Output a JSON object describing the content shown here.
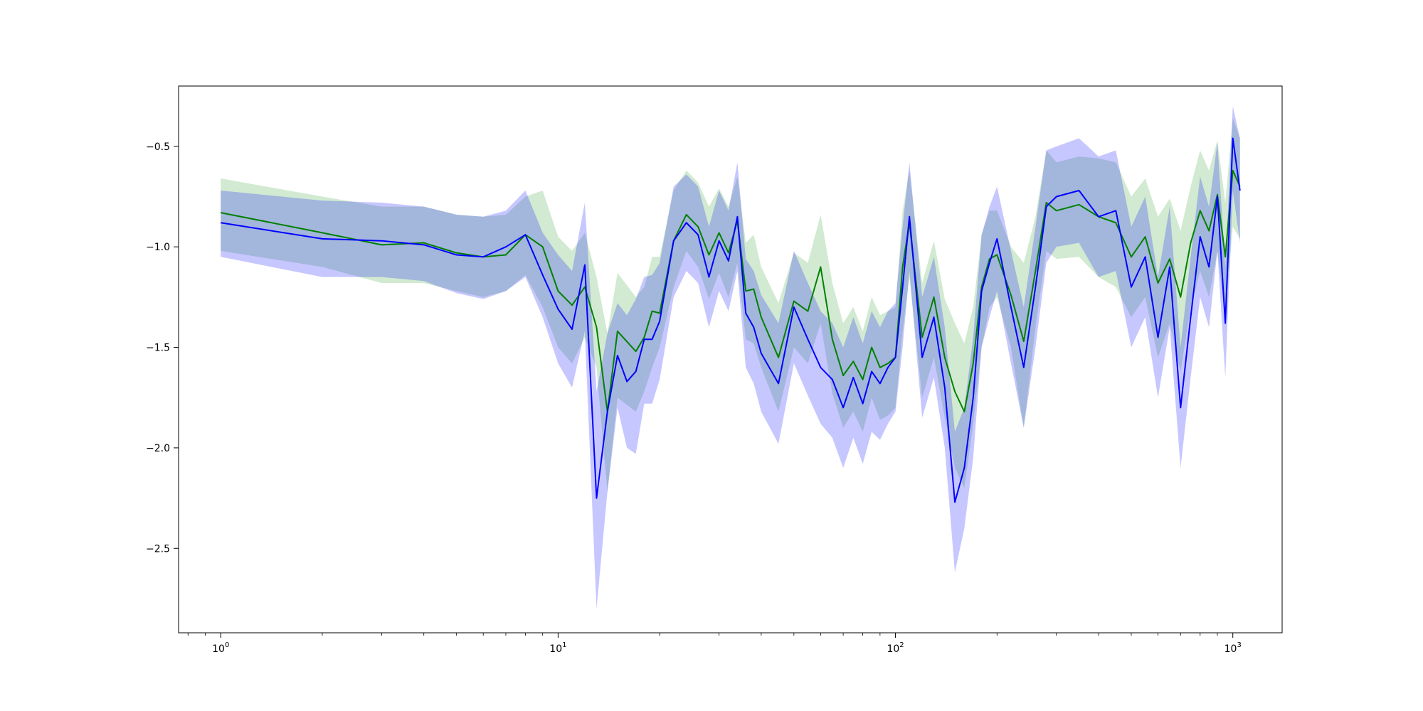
{
  "chart_data": {
    "type": "line",
    "title": "",
    "xlabel": "",
    "ylabel": "",
    "xscale": "log",
    "xlim": [
      0.75,
      1400
    ],
    "ylim": [
      -2.92,
      -0.2
    ],
    "grid": false,
    "legend": "none",
    "xticks": [
      {
        "value": 1,
        "base": "10",
        "exp": "0"
      },
      {
        "value": 10,
        "base": "10",
        "exp": "1"
      },
      {
        "value": 100,
        "base": "10",
        "exp": "2"
      },
      {
        "value": 1000,
        "base": "10",
        "exp": "3"
      }
    ],
    "yticks": [
      {
        "value": -0.5,
        "label": "−0.5"
      },
      {
        "value": -1.0,
        "label": "−1.0"
      },
      {
        "value": -1.5,
        "label": "−1.5"
      },
      {
        "value": -2.0,
        "label": "−2.0"
      },
      {
        "value": -2.5,
        "label": "−2.5"
      }
    ],
    "series": [
      {
        "color": "#008000",
        "band_color": "#2ca02c",
        "x": [
          1,
          2,
          3,
          4,
          5,
          6,
          7,
          8,
          9,
          10,
          11,
          12,
          13,
          14,
          15,
          17,
          18,
          19,
          20,
          22,
          24,
          26,
          28,
          30,
          32,
          34,
          36,
          38,
          40,
          45,
          50,
          55,
          60,
          65,
          70,
          75,
          80,
          85,
          90,
          95,
          100,
          105,
          110,
          120,
          130,
          140,
          150,
          160,
          170,
          180,
          190,
          200,
          220,
          240,
          260,
          280,
          300,
          350,
          400,
          450,
          500,
          550,
          600,
          650,
          700,
          750,
          800,
          850,
          900,
          950,
          1000,
          1050
        ],
        "y": [
          -0.83,
          -0.93,
          -0.99,
          -0.98,
          -1.03,
          -1.05,
          -1.04,
          -0.94,
          -1.0,
          -1.22,
          -1.29,
          -1.2,
          -1.4,
          -1.82,
          -1.42,
          -1.52,
          -1.45,
          -1.32,
          -1.33,
          -0.97,
          -0.84,
          -0.9,
          -1.04,
          -0.93,
          -1.03,
          -0.87,
          -1.22,
          -1.21,
          -1.35,
          -1.55,
          -1.27,
          -1.32,
          -1.1,
          -1.46,
          -1.64,
          -1.57,
          -1.66,
          -1.5,
          -1.6,
          -1.58,
          -1.55,
          -1.1,
          -0.88,
          -1.45,
          -1.25,
          -1.55,
          -1.72,
          -1.82,
          -1.58,
          -1.2,
          -1.06,
          -1.04,
          -1.24,
          -1.47,
          -1.12,
          -0.78,
          -0.82,
          -0.79,
          -0.85,
          -0.88,
          -1.05,
          -0.95,
          -1.18,
          -1.06,
          -1.25,
          -0.98,
          -0.82,
          -0.92,
          -0.74,
          -1.05,
          -0.62,
          -0.7
        ],
        "lower": [
          -1.02,
          -1.1,
          -1.18,
          -1.18,
          -1.22,
          -1.25,
          -1.22,
          -1.14,
          -1.3,
          -1.5,
          -1.58,
          -1.45,
          -1.6,
          -2.22,
          -1.75,
          -1.82,
          -1.72,
          -1.6,
          -1.5,
          -1.2,
          -1.02,
          -1.1,
          -1.26,
          -1.13,
          -1.25,
          -1.08,
          -1.46,
          -1.48,
          -1.6,
          -1.82,
          -1.5,
          -1.58,
          -1.38,
          -1.73,
          -1.9,
          -1.82,
          -1.92,
          -1.75,
          -1.86,
          -1.84,
          -1.8,
          -1.42,
          -1.15,
          -1.75,
          -1.55,
          -1.85,
          -2.1,
          -2.2,
          -1.88,
          -1.5,
          -1.3,
          -1.25,
          -1.5,
          -1.9,
          -1.4,
          -1.02,
          -1.06,
          -1.05,
          -1.15,
          -1.2,
          -1.35,
          -1.25,
          -1.55,
          -1.38,
          -1.62,
          -1.3,
          -1.12,
          -1.25,
          -1.02,
          -1.35,
          -0.9,
          -0.96
        ],
        "upper": [
          -0.66,
          -0.75,
          -0.8,
          -0.8,
          -0.84,
          -0.85,
          -0.84,
          -0.75,
          -0.72,
          -0.95,
          -1.02,
          -0.93,
          -1.15,
          -1.43,
          -1.13,
          -1.25,
          -1.2,
          -1.05,
          -1.05,
          -0.72,
          -0.62,
          -0.68,
          -0.8,
          -0.71,
          -0.8,
          -0.65,
          -0.98,
          -0.94,
          -1.1,
          -1.28,
          -1.03,
          -1.08,
          -0.84,
          -1.18,
          -1.38,
          -1.3,
          -1.42,
          -1.25,
          -1.34,
          -1.32,
          -1.3,
          -0.82,
          -0.62,
          -1.18,
          -0.97,
          -1.26,
          -1.38,
          -1.48,
          -1.3,
          -0.94,
          -0.82,
          -0.82,
          -1.0,
          -1.08,
          -0.85,
          -0.52,
          -0.58,
          -0.55,
          -0.56,
          -0.58,
          -0.75,
          -0.66,
          -0.85,
          -0.76,
          -0.92,
          -0.7,
          -0.52,
          -0.62,
          -0.47,
          -0.78,
          -0.36,
          -0.46
        ]
      },
      {
        "color": "#0000ff",
        "band_color": "#0000ff",
        "x": [
          1,
          2,
          3,
          4,
          5,
          6,
          7,
          8,
          9,
          10,
          11,
          12,
          13,
          14,
          15,
          16,
          17,
          18,
          19,
          20,
          22,
          24,
          26,
          28,
          30,
          32,
          34,
          36,
          38,
          40,
          45,
          50,
          55,
          60,
          65,
          70,
          75,
          80,
          85,
          90,
          95,
          100,
          105,
          110,
          120,
          130,
          140,
          150,
          160,
          170,
          180,
          190,
          200,
          220,
          240,
          260,
          280,
          300,
          350,
          400,
          450,
          500,
          550,
          600,
          650,
          700,
          750,
          800,
          850,
          900,
          950,
          1000,
          1050
        ],
        "y": [
          -0.88,
          -0.96,
          -0.97,
          -0.99,
          -1.04,
          -1.05,
          -1.0,
          -0.94,
          -1.14,
          -1.31,
          -1.41,
          -1.09,
          -2.25,
          -1.82,
          -1.54,
          -1.67,
          -1.62,
          -1.46,
          -1.46,
          -1.37,
          -0.97,
          -0.88,
          -0.94,
          -1.15,
          -0.97,
          -1.07,
          -0.85,
          -1.33,
          -1.4,
          -1.53,
          -1.68,
          -1.3,
          -1.46,
          -1.6,
          -1.66,
          -1.8,
          -1.65,
          -1.78,
          -1.62,
          -1.68,
          -1.6,
          -1.55,
          -1.2,
          -0.85,
          -1.55,
          -1.35,
          -1.7,
          -2.27,
          -2.1,
          -1.75,
          -1.22,
          -1.08,
          -0.96,
          -1.3,
          -1.6,
          -1.2,
          -0.8,
          -0.75,
          -0.72,
          -0.85,
          -0.82,
          -1.2,
          -1.05,
          -1.45,
          -1.1,
          -1.8,
          -1.35,
          -0.95,
          -1.1,
          -0.75,
          -1.38,
          -0.46,
          -0.72
        ],
        "lower": [
          -1.05,
          -1.15,
          -1.15,
          -1.17,
          -1.23,
          -1.26,
          -1.22,
          -1.15,
          -1.35,
          -1.58,
          -1.7,
          -1.42,
          -2.8,
          -2.22,
          -1.8,
          -2.0,
          -2.03,
          -1.78,
          -1.78,
          -1.66,
          -1.25,
          -1.12,
          -1.18,
          -1.4,
          -1.22,
          -1.32,
          -1.12,
          -1.6,
          -1.68,
          -1.82,
          -1.98,
          -1.58,
          -1.74,
          -1.88,
          -1.95,
          -2.1,
          -1.95,
          -2.08,
          -1.92,
          -1.96,
          -1.88,
          -1.82,
          -1.5,
          -1.12,
          -1.85,
          -1.65,
          -2.0,
          -2.62,
          -2.4,
          -2.05,
          -1.5,
          -1.35,
          -1.22,
          -1.58,
          -1.9,
          -1.5,
          -1.08,
          -1.0,
          -0.98,
          -1.15,
          -1.12,
          -1.5,
          -1.35,
          -1.75,
          -1.4,
          -2.1,
          -1.65,
          -1.25,
          -1.4,
          -1.02,
          -1.65,
          -0.72,
          -0.98
        ],
        "upper": [
          -0.72,
          -0.77,
          -0.78,
          -0.8,
          -0.84,
          -0.85,
          -0.82,
          -0.72,
          -0.93,
          -1.04,
          -1.12,
          -0.78,
          -1.72,
          -1.43,
          -1.28,
          -1.34,
          -1.26,
          -1.15,
          -1.14,
          -1.08,
          -0.7,
          -0.64,
          -0.7,
          -0.9,
          -0.72,
          -0.82,
          -0.58,
          -1.06,
          -1.12,
          -1.24,
          -1.38,
          -1.02,
          -1.18,
          -1.32,
          -1.38,
          -1.5,
          -1.35,
          -1.48,
          -1.32,
          -1.4,
          -1.32,
          -1.28,
          -0.9,
          -0.58,
          -1.25,
          -1.05,
          -1.4,
          -1.92,
          -1.8,
          -1.45,
          -0.94,
          -0.8,
          -0.7,
          -1.02,
          -1.3,
          -0.9,
          -0.52,
          -0.5,
          -0.46,
          -0.55,
          -0.52,
          -0.9,
          -0.75,
          -1.15,
          -0.8,
          -1.5,
          -1.05,
          -0.65,
          -0.8,
          -0.48,
          -1.1,
          -0.3,
          -0.46
        ]
      }
    ]
  }
}
